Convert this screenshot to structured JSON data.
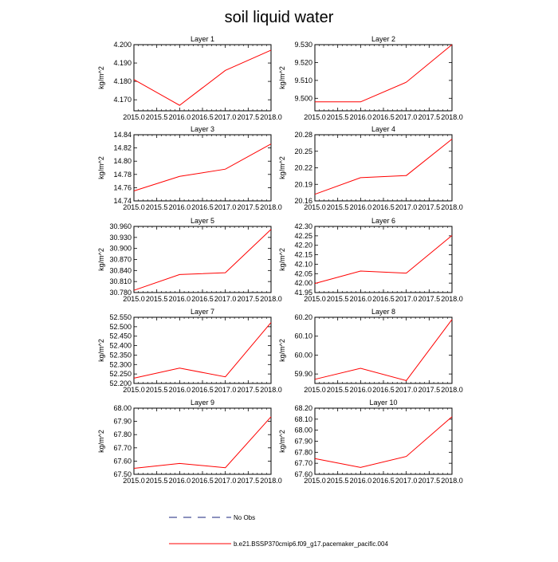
{
  "title": "soil liquid water",
  "chart_data": {
    "type": "line",
    "x_ticks": [
      "2015.0",
      "2015.5",
      "2016.0",
      "2016.5",
      "2017.0",
      "2017.5",
      "2018.0"
    ],
    "xlim": [
      2015.0,
      2018.0
    ],
    "x": [
      2015.0,
      2016.0,
      2017.0,
      2018.0
    ],
    "series_name": "b.e21.BSSP370cmip6.f09_g17.pacemaker_pacific.004",
    "line_color": "#ff0000",
    "panels": [
      {
        "title": "Layer 1",
        "ylabel": "kg/m^2",
        "ylim": [
          4.164,
          4.2
        ],
        "y_ticks": [
          "4.170",
          "4.180",
          "4.190",
          "4.200"
        ],
        "values": [
          4.181,
          4.167,
          4.186,
          4.197
        ]
      },
      {
        "title": "Layer 2",
        "ylabel": "kg/m^2",
        "ylim": [
          9.493,
          9.53
        ],
        "y_ticks": [
          "9.500",
          "9.510",
          "9.520",
          "9.530"
        ],
        "values": [
          9.498,
          9.498,
          9.509,
          9.53
        ]
      },
      {
        "title": "Layer 3",
        "ylabel": "kg/m^2",
        "ylim": [
          14.74,
          14.84
        ],
        "y_ticks": [
          "14.74",
          "14.76",
          "14.78",
          "14.80",
          "14.82",
          "14.84"
        ],
        "values": [
          14.755,
          14.777,
          14.788,
          14.826
        ]
      },
      {
        "title": "Layer 4",
        "ylabel": "kg/m^2",
        "ylim": [
          20.16,
          20.28
        ],
        "y_ticks": [
          "20.16",
          "20.19",
          "20.22",
          "20.25",
          "20.28"
        ],
        "values": [
          20.172,
          20.202,
          20.206,
          20.272
        ]
      },
      {
        "title": "Layer 5",
        "ylabel": "kg/m^2",
        "ylim": [
          30.78,
          30.96
        ],
        "y_ticks": [
          "30.780",
          "30.810",
          "30.840",
          "30.870",
          "30.900",
          "30.930",
          "30.960"
        ],
        "values": [
          30.786,
          30.829,
          30.834,
          30.952
        ]
      },
      {
        "title": "Layer 6",
        "ylabel": "kg/m^2",
        "ylim": [
          41.95,
          42.3
        ],
        "y_ticks": [
          "41.95",
          "42.00",
          "42.05",
          "42.10",
          "42.15",
          "42.20",
          "42.25",
          "42.30"
        ],
        "values": [
          41.998,
          42.064,
          42.053,
          42.252
        ]
      },
      {
        "title": "Layer 7",
        "ylabel": "kg/m^2",
        "ylim": [
          52.2,
          52.55
        ],
        "y_ticks": [
          "52.200",
          "52.250",
          "52.300",
          "52.350",
          "52.400",
          "52.450",
          "52.500",
          "52.550"
        ],
        "values": [
          52.228,
          52.281,
          52.235,
          52.522
        ]
      },
      {
        "title": "Layer 8",
        "ylabel": "kg/m^2",
        "ylim": [
          59.85,
          60.2
        ],
        "y_ticks": [
          "59.90",
          "60.00",
          "60.10",
          "60.20"
        ],
        "values": [
          59.872,
          59.93,
          59.865,
          60.188
        ]
      },
      {
        "title": "Layer 9",
        "ylabel": "kg/m^2",
        "ylim": [
          67.5,
          68.0
        ],
        "y_ticks": [
          "67.50",
          "67.60",
          "67.70",
          "67.80",
          "67.90",
          "68.00"
        ],
        "values": [
          67.545,
          67.582,
          67.55,
          67.935
        ]
      },
      {
        "title": "Layer 10",
        "ylabel": "kg/m^2",
        "ylim": [
          67.6,
          68.2
        ],
        "y_ticks": [
          "67.60",
          "67.70",
          "67.80",
          "67.90",
          "68.00",
          "68.10",
          "68.20"
        ],
        "values": [
          67.743,
          67.662,
          67.762,
          68.122
        ]
      }
    ],
    "legend": [
      {
        "label": "No Obs",
        "style": "dashed",
        "color": "#1a237e"
      },
      {
        "label": "b.e21.BSSP370cmip6.f09_g17.pacemaker_pacific.004",
        "style": "solid",
        "color": "#ff0000"
      }
    ]
  }
}
